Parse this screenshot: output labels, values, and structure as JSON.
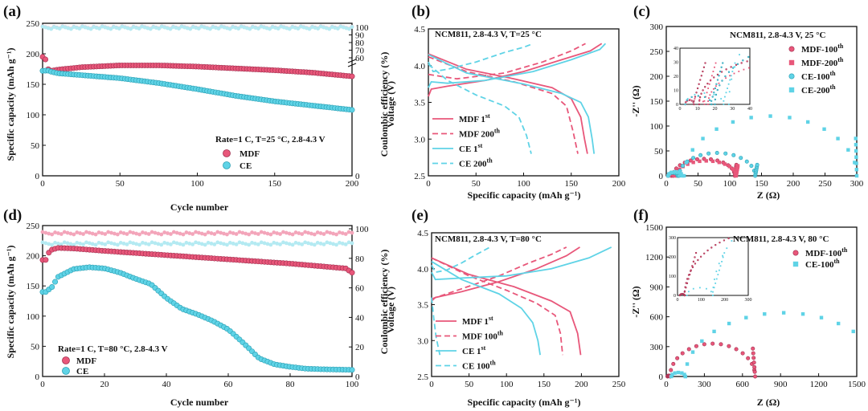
{
  "figure": {
    "panel_labels": [
      "(a)",
      "(b)",
      "(c)",
      "(d)",
      "(e)",
      "(f)"
    ]
  },
  "colors": {
    "mdf": "#e8577a",
    "ce": "#5fd3e6",
    "mdf_ce": "#f3a5ba",
    "ce_ce": "#b4eaf2"
  },
  "chart_data": [
    {
      "id": "a",
      "type": "scatter",
      "xlabel": "Cycle number",
      "ylabel": "Specific capacity (mAh g⁻¹)",
      "y2label": "Coulombic efficiency (%)",
      "xlim": [
        0,
        200
      ],
      "ylim": [
        0,
        250
      ],
      "xticks": [
        0,
        50,
        100,
        150,
        200
      ],
      "yticks": [
        0,
        50,
        100,
        150,
        200,
        250
      ],
      "y2ticks_upper": [
        60,
        70,
        80,
        90,
        100
      ],
      "y2ticks_lower": [
        0
      ],
      "annotation": "Rate=1 C, T=25 °C, 2.8-4.3 V",
      "legend": [
        "MDF",
        "CE"
      ],
      "series": [
        {
          "name": "MDF",
          "color": "mdf",
          "x": [
            1,
            2,
            3,
            5,
            10,
            25,
            50,
            75,
            100,
            125,
            150,
            175,
            200
          ],
          "y": [
            195,
            190,
            176,
            172,
            174,
            178,
            181,
            181,
            179,
            176,
            173,
            169,
            163
          ]
        },
        {
          "name": "CE",
          "color": "ce",
          "x": [
            1,
            3,
            5,
            10,
            25,
            50,
            75,
            100,
            125,
            150,
            175,
            200
          ],
          "y": [
            172,
            173,
            171,
            168,
            165,
            160,
            152,
            142,
            131,
            122,
            115,
            108
          ]
        }
      ],
      "ce_series": [
        {
          "name": "MDF",
          "color": "mdf_ce",
          "value": 99.7
        },
        {
          "name": "CE",
          "color": "ce_ce",
          "value": 99.4
        }
      ]
    },
    {
      "id": "b",
      "type": "line",
      "title": "NCM811, 2.8-4.3 V, T=25 °C",
      "xlabel": "Specific capacity (mAh g⁻¹)",
      "ylabel": "Voltage (V)",
      "xlim": [
        0,
        200
      ],
      "ylim": [
        2.5,
        4.5
      ],
      "xticks": [
        0,
        50,
        100,
        150,
        200
      ],
      "yticks": [
        2.5,
        3.0,
        3.5,
        4.0,
        4.5
      ],
      "legend": [
        {
          "base": "MDF 1",
          "sup": "st",
          "color": "mdf",
          "dash": false
        },
        {
          "base": "MDF 200",
          "sup": "th",
          "color": "mdf",
          "dash": true
        },
        {
          "base": "CE 1",
          "sup": "st",
          "color": "ce",
          "dash": false
        },
        {
          "base": "CE 200",
          "sup": "th",
          "color": "ce",
          "dash": true
        }
      ],
      "series": [
        {
          "name": "MDF 1st charge",
          "color": "mdf",
          "dash": false,
          "x": [
            0,
            3,
            20,
            60,
            100,
            140,
            170,
            182
          ],
          "y": [
            3.58,
            3.68,
            3.72,
            3.8,
            3.92,
            4.08,
            4.2,
            4.3
          ]
        },
        {
          "name": "MDF 1st discharge",
          "color": "mdf",
          "dash": false,
          "x": [
            0,
            40,
            90,
            130,
            150,
            160,
            164,
            167
          ],
          "y": [
            4.16,
            3.95,
            3.82,
            3.7,
            3.55,
            3.3,
            3.0,
            2.8
          ]
        },
        {
          "name": "MDF 200th charge",
          "color": "mdf",
          "dash": true,
          "x": [
            0,
            30,
            80,
            120,
            150,
            165
          ],
          "y": [
            3.88,
            3.82,
            3.9,
            4.05,
            4.2,
            4.3
          ]
        },
        {
          "name": "MDF 200th discharge",
          "color": "mdf",
          "dash": true,
          "x": [
            0,
            40,
            90,
            130,
            145,
            152,
            157
          ],
          "y": [
            4.12,
            3.92,
            3.78,
            3.62,
            3.45,
            3.1,
            2.8
          ]
        },
        {
          "name": "CE 1st charge",
          "color": "ce",
          "dash": false,
          "x": [
            0,
            3,
            20,
            60,
            110,
            150,
            180,
            186
          ],
          "y": [
            3.7,
            3.78,
            3.76,
            3.8,
            3.92,
            4.08,
            4.22,
            4.3
          ]
        },
        {
          "name": "CE 1st discharge",
          "color": "ce",
          "dash": false,
          "x": [
            0,
            40,
            100,
            140,
            160,
            168,
            172,
            174
          ],
          "y": [
            4.15,
            3.9,
            3.75,
            3.62,
            3.5,
            3.3,
            3.0,
            2.8
          ]
        },
        {
          "name": "CE 200th charge",
          "color": "ce",
          "dash": true,
          "x": [
            0,
            5,
            20,
            50,
            80,
            100,
            110
          ],
          "y": [
            4.05,
            3.92,
            3.95,
            4.05,
            4.18,
            4.25,
            4.3
          ]
        },
        {
          "name": "CE 200th discharge",
          "color": "ce",
          "dash": true,
          "x": [
            0,
            20,
            50,
            80,
            95,
            103,
            108
          ],
          "y": [
            4.02,
            3.8,
            3.6,
            3.45,
            3.3,
            3.05,
            2.8
          ]
        }
      ]
    },
    {
      "id": "c",
      "type": "scatter",
      "title": "NCM811, 2.8-4.3 V, 25 °C",
      "xlabel": "Z (Ω)",
      "ylabel": "-Z'' (Ω)",
      "xlim": [
        0,
        300
      ],
      "ylim": [
        0,
        300
      ],
      "xticks": [
        0,
        50,
        100,
        150,
        200,
        250,
        300
      ],
      "yticks": [
        0,
        50,
        100,
        150,
        200,
        250,
        300
      ],
      "legend": [
        {
          "base": "MDF-100",
          "sup": "th",
          "color": "mdf",
          "marker": "circle"
        },
        {
          "base": "MDF-200",
          "sup": "th",
          "color": "mdf",
          "marker": "square"
        },
        {
          "base": "CE-100",
          "sup": "th",
          "color": "ce",
          "marker": "circle"
        },
        {
          "base": "CE-200",
          "sup": "th",
          "color": "ce",
          "marker": "square"
        }
      ],
      "inset": {
        "xlim": [
          0,
          40
        ],
        "ylim": [
          0,
          40
        ],
        "xticks": [
          0,
          10,
          20,
          30,
          40
        ],
        "yticks": [
          0,
          10,
          20,
          30,
          40
        ]
      },
      "series": [
        {
          "name": "MDF-100th",
          "color": "mdf",
          "marker": "circle",
          "semicircles": [
            [
              3,
              8,
              3
            ],
            [
              11,
              108,
              34
            ]
          ],
          "tail": [
            110,
            120,
            22
          ]
        },
        {
          "name": "MDF-200th",
          "color": "mdf",
          "marker": "square",
          "semicircles": [
            [
              3,
              14,
              4
            ],
            [
              16,
              110,
              30
            ]
          ],
          "tail": [
            112,
            124,
            20
          ]
        },
        {
          "name": "CE-100th",
          "color": "ce",
          "marker": "circle",
          "semicircles": [
            [
              3,
              18,
              6
            ],
            [
              20,
              140,
              46
            ]
          ],
          "tail": [
            140,
            156,
            22
          ]
        },
        {
          "name": "CE-200th",
          "color": "ce",
          "marker": "square",
          "semicircles": [
            [
              3,
              25,
              8
            ],
            [
              28,
              300,
              120
            ]
          ],
          "tail": [
            292,
            292,
            75
          ]
        }
      ]
    },
    {
      "id": "d",
      "type": "scatter",
      "xlabel": "Cycle number",
      "ylabel": "Specific capacity (mAh g⁻¹)",
      "y2label": "Coulombic efficiency (%)",
      "xlim": [
        0,
        100
      ],
      "ylim": [
        0,
        250
      ],
      "xticks": [
        0,
        20,
        40,
        60,
        80,
        100
      ],
      "yticks": [
        0,
        50,
        100,
        150,
        200,
        250
      ],
      "y2ticks": [
        0,
        20,
        40,
        60,
        80,
        100
      ],
      "annotation": "Rate=1 C, T=80 °C, 2.8-4.3 V",
      "legend": [
        "MDF",
        "CE"
      ],
      "series": [
        {
          "name": "MDF",
          "color": "mdf",
          "x": [
            1,
            2,
            3,
            5,
            10,
            20,
            40,
            60,
            80,
            98,
            100
          ],
          "y": [
            193,
            205,
            210,
            213,
            212,
            208,
            201,
            194,
            187,
            179,
            172
          ]
        },
        {
          "name": "CE",
          "color": "ce",
          "x": [
            1,
            3,
            5,
            10,
            15,
            20,
            25,
            30,
            35,
            40,
            45,
            50,
            55,
            60,
            65,
            70,
            75,
            80,
            85,
            90,
            100
          ],
          "y": [
            140,
            148,
            165,
            178,
            181,
            179,
            172,
            162,
            153,
            130,
            112,
            103,
            92,
            78,
            55,
            30,
            20,
            16,
            13,
            12,
            11
          ]
        }
      ],
      "ce_series": [
        {
          "name": "MDF",
          "color": "mdf_ce",
          "value": 97
        },
        {
          "name": "CE",
          "color": "ce_ce",
          "value": 90
        }
      ]
    },
    {
      "id": "e",
      "type": "line",
      "title": "NCM811, 2.8-4.3 V, T=80 °C",
      "xlabel": "Specific capacity (mAh g⁻¹)",
      "ylabel": "Voltage (V)",
      "xlim": [
        0,
        250
      ],
      "ylim": [
        2.5,
        4.5
      ],
      "xticks": [
        0,
        50,
        100,
        150,
        200,
        250
      ],
      "yticks": [
        2.5,
        3.0,
        3.5,
        4.0,
        4.5
      ],
      "legend": [
        {
          "base": "MDF 1",
          "sup": "st",
          "color": "mdf",
          "dash": false
        },
        {
          "base": "MDF 100",
          "sup": "th",
          "color": "mdf",
          "dash": true
        },
        {
          "base": "CE 1",
          "sup": "st",
          "color": "ce",
          "dash": false
        },
        {
          "base": "CE 100",
          "sup": "th",
          "color": "ce",
          "dash": true
        }
      ],
      "series": [
        {
          "name": "MDF 1st charge",
          "color": "mdf",
          "dash": false,
          "x": [
            0,
            5,
            40,
            90,
            140,
            180,
            198
          ],
          "y": [
            3.55,
            3.6,
            3.68,
            3.82,
            4.0,
            4.18,
            4.3
          ]
        },
        {
          "name": "MDF 1st discharge",
          "color": "mdf",
          "dash": false,
          "x": [
            0,
            50,
            110,
            160,
            185,
            195,
            199
          ],
          "y": [
            4.15,
            3.92,
            3.75,
            3.55,
            3.4,
            3.1,
            2.8
          ]
        },
        {
          "name": "MDF 100th charge",
          "color": "mdf",
          "dash": true,
          "x": [
            0,
            40,
            90,
            130,
            160,
            180
          ],
          "y": [
            3.58,
            3.72,
            3.9,
            4.08,
            4.2,
            4.3
          ]
        },
        {
          "name": "MDF 100th discharge",
          "color": "mdf",
          "dash": true,
          "x": [
            0,
            50,
            100,
            140,
            165,
            172,
            175
          ],
          "y": [
            4.15,
            3.9,
            3.7,
            3.52,
            3.35,
            3.1,
            2.8
          ]
        },
        {
          "name": "CE 1st charge",
          "color": "ce",
          "dash": false,
          "x": [
            0,
            5,
            40,
            100,
            160,
            210,
            240
          ],
          "y": [
            3.95,
            3.85,
            3.87,
            3.9,
            4.0,
            4.15,
            4.3
          ]
        },
        {
          "name": "CE 1st discharge",
          "color": "ce",
          "dash": false,
          "x": [
            0,
            40,
            90,
            120,
            135,
            142,
            145
          ],
          "y": [
            4.1,
            3.85,
            3.65,
            3.45,
            3.25,
            3.0,
            2.8
          ]
        },
        {
          "name": "CE 100th charge",
          "color": "ce",
          "dash": true,
          "x": [
            0,
            5,
            20,
            40,
            60,
            78
          ],
          "y": [
            4.05,
            3.95,
            3.98,
            4.08,
            4.2,
            4.3
          ]
        },
        {
          "name": "CE 100th discharge",
          "color": "ce",
          "dash": true,
          "x": [
            0,
            3,
            6,
            9,
            11
          ],
          "y": [
            3.6,
            3.3,
            3.05,
            2.9,
            2.8
          ]
        }
      ]
    },
    {
      "id": "f",
      "type": "scatter",
      "title": "NCM811, 2.8-4.3 V, 80 °C",
      "xlabel": "Z (Ω)",
      "ylabel": "-Z'' (Ω)",
      "xlim": [
        0,
        1500
      ],
      "ylim": [
        0,
        1500
      ],
      "xticks": [
        0,
        300,
        600,
        900,
        1200,
        1500
      ],
      "yticks": [
        0,
        300,
        600,
        900,
        1200,
        1500
      ],
      "legend": [
        {
          "base": "MDF-100",
          "sup": "th",
          "color": "mdf",
          "marker": "circle"
        },
        {
          "base": "CE-100",
          "sup": "th",
          "color": "ce",
          "marker": "square"
        }
      ],
      "inset": {
        "xlim": [
          0,
          300
        ],
        "ylim": [
          0,
          300
        ],
        "xticks": [
          0,
          100,
          200,
          300
        ],
        "yticks": [
          0,
          100,
          200,
          300
        ]
      },
      "series": [
        {
          "name": "MDF-100th",
          "color": "mdf",
          "marker": "circle",
          "semicircles": [
            [
              10,
              30,
              8
            ],
            [
              30,
              700,
              330
            ]
          ],
          "tail": [
            600,
            610,
            280
          ]
        },
        {
          "name": "CE-100th",
          "color": "ce",
          "marker": "square",
          "semicircles": [
            [
              40,
              150,
              40
            ],
            [
              150,
              1700,
              640
            ]
          ],
          "tail": [
            1400,
            1400,
            550
          ]
        }
      ]
    }
  ]
}
